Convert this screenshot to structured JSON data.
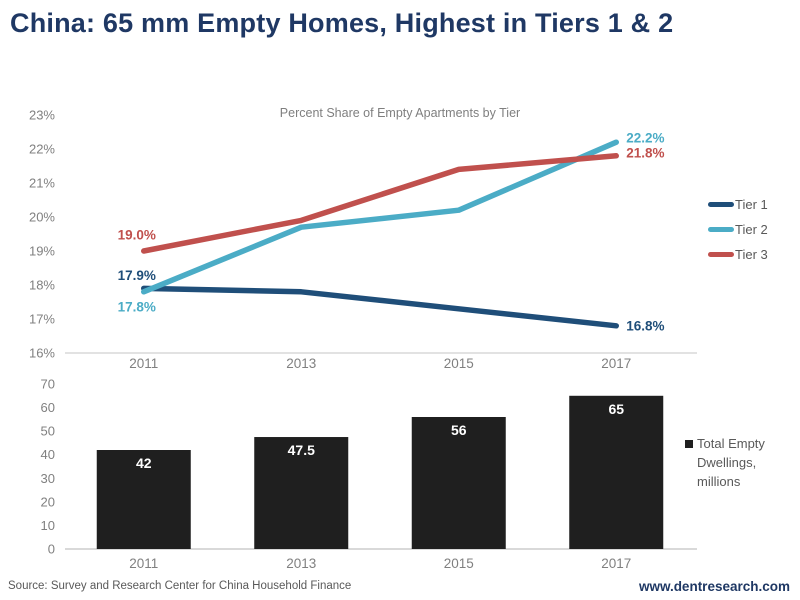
{
  "header": {
    "title": "China: 65 mm Empty Homes, Highest in Tiers 1 & 2"
  },
  "footer": {
    "source": "Source: Survey and Research Center for China Household Finance",
    "website": "www.dentresearch.com"
  },
  "colors": {
    "title_navy": "#1F3864",
    "tier1": "#1F4E79",
    "tier2": "#4BACC6",
    "tier3": "#C0504D",
    "bar": "#1F1F1F",
    "bar_value_label": "#FFFFFF",
    "axis_text": "#808080",
    "legend_text": "#595959",
    "subtitle_text": "#7F7F7F",
    "source_text": "#595959",
    "axis_line": "#D9D9D9"
  },
  "chart_data": [
    {
      "type": "line",
      "title": "Percent Share of Empty Apartments by Tier",
      "x": [
        "2011",
        "2013",
        "2015",
        "2017"
      ],
      "ylim": [
        16,
        23
      ],
      "yticks": [
        {
          "v": 23,
          "label": "23%"
        },
        {
          "v": 22,
          "label": "22%"
        },
        {
          "v": 21,
          "label": "21%"
        },
        {
          "v": 20,
          "label": "20%"
        },
        {
          "v": 19,
          "label": "19%"
        },
        {
          "v": 18,
          "label": "18%"
        },
        {
          "v": 17,
          "label": "17%"
        },
        {
          "v": 16,
          "label": "16%"
        }
      ],
      "legend_position": "right",
      "grid": false,
      "series": [
        {
          "name": "Tier 1",
          "color": "#1F4E79",
          "values": [
            17.9,
            17.8,
            17.3,
            16.8
          ],
          "first_label": "17.9%",
          "last_label": "16.8%"
        },
        {
          "name": "Tier 2",
          "color": "#4BACC6",
          "values": [
            17.8,
            19.7,
            20.2,
            22.2
          ],
          "first_label": "17.8%",
          "last_label": "22.2%"
        },
        {
          "name": "Tier 3",
          "color": "#C0504D",
          "values": [
            19.0,
            19.9,
            21.4,
            21.8
          ],
          "first_label": "19.0%",
          "last_label": "21.8%"
        }
      ]
    },
    {
      "type": "bar",
      "categories": [
        "2011",
        "2013",
        "2015",
        "2017"
      ],
      "values": [
        42,
        47.5,
        56,
        65
      ],
      "value_labels": [
        "42",
        "47.5",
        "56",
        "65"
      ],
      "ylim": [
        0,
        70
      ],
      "yticks": [
        {
          "v": 70,
          "label": "70"
        },
        {
          "v": 60,
          "label": "60"
        },
        {
          "v": 50,
          "label": "50"
        },
        {
          "v": 40,
          "label": "40"
        },
        {
          "v": 30,
          "label": "30"
        },
        {
          "v": 20,
          "label": "20"
        },
        {
          "v": 10,
          "label": "10"
        },
        {
          "v": 0,
          "label": "0"
        }
      ],
      "legend": "Total Empty Dwellings, millions",
      "bar_color": "#1F1F1F",
      "grid": false
    }
  ]
}
